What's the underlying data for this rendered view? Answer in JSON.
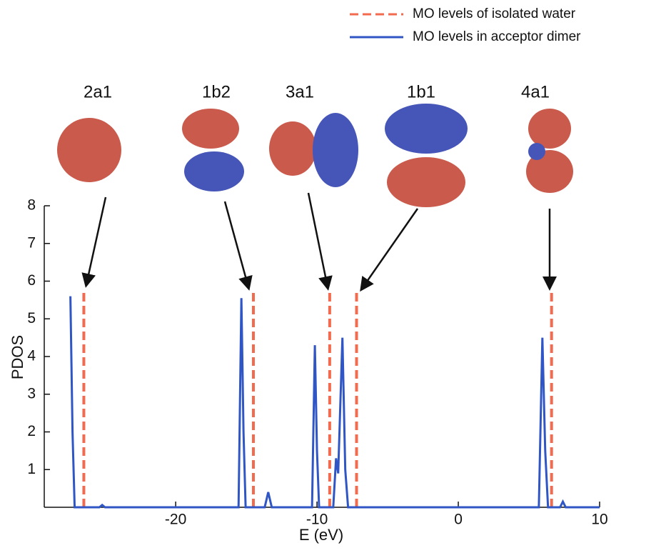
{
  "chart_data": {
    "type": "line",
    "xlabel": "E (eV)",
    "ylabel": "PDOS",
    "xlim": [
      -29.3,
      10
    ],
    "ylim": [
      0,
      8
    ],
    "xticks": [
      -20,
      -10,
      0,
      10
    ],
    "yticks": [
      1,
      2,
      3,
      4,
      5,
      6,
      7,
      8
    ],
    "legend": "top-right",
    "orbital_labels": [
      "2a1",
      "1b2",
      "3a1",
      "1b1",
      "4a1"
    ],
    "series": [
      {
        "name": "MO levels of isolated water",
        "color": "#f26b4f",
        "dash": true,
        "x": [
          -26.5,
          -26.5,
          -26.5,
          -14.5,
          -14.5,
          -14.5,
          -9.1,
          -9.1,
          -9.1,
          -7.2,
          -7.2,
          -7.2,
          6.6,
          6.6
        ],
        "values": [
          0,
          5.8,
          null,
          0,
          5.8,
          null,
          0,
          5.8,
          null,
          0,
          5.8,
          null,
          0,
          5.8
        ]
      },
      {
        "name": "MO levels in acceptor dimer",
        "color": "#2f56c4",
        "dash": false,
        "x": [
          -27.45,
          -27.3,
          -27.15,
          -25.4,
          -25.2,
          -25.0,
          -15.55,
          -15.35,
          -15.2,
          -15.05,
          -13.7,
          -13.45,
          -13.2,
          -10.35,
          -10.15,
          -10.0,
          -9.85,
          -8.85,
          -8.65,
          -8.5,
          -8.2,
          -8.0,
          -7.8,
          5.7,
          5.95,
          6.15,
          6.35,
          7.2,
          7.4,
          7.6,
          10
        ],
        "values": [
          5.6,
          2.0,
          0,
          0,
          0.06,
          0,
          0,
          5.55,
          2.0,
          0,
          0,
          0.4,
          0,
          0,
          4.3,
          1.5,
          0,
          0,
          1.3,
          0.9,
          4.5,
          1.0,
          0,
          0,
          4.5,
          1.5,
          0,
          0,
          0.15,
          0,
          0
        ]
      }
    ]
  }
}
